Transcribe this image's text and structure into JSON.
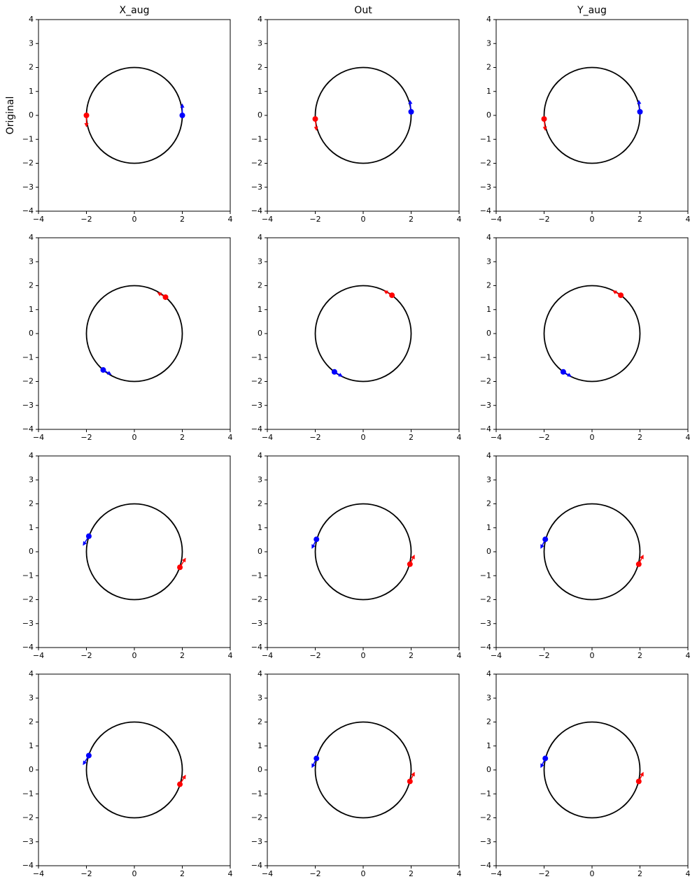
{
  "chart_data": [
    {
      "type": "scatter",
      "title": "X_aug",
      "ylabel": "Original",
      "xlim": [
        -4,
        4
      ],
      "ylim": [
        -4,
        4
      ],
      "xticks": [
        {
          "value": -4,
          "label": "−4"
        },
        {
          "value": -2,
          "label": "−2"
        },
        0,
        2,
        4
      ],
      "yticks": [
        {
          "value": -4,
          "label": "−4"
        },
        {
          "value": -3,
          "label": "−3"
        },
        {
          "value": -2,
          "label": "−2"
        },
        {
          "value": -1,
          "label": "−1"
        },
        0,
        1,
        2,
        3,
        4
      ],
      "circle_radius": 2,
      "series": [
        {
          "color": "red",
          "x": [
            -2
          ],
          "y": [
            0
          ],
          "dx": [
            0
          ],
          "dy": [
            -0.5
          ]
        },
        {
          "color": "blue",
          "x": [
            2
          ],
          "y": [
            0
          ],
          "dx": [
            0
          ],
          "dy": [
            0.5
          ]
        }
      ]
    },
    {
      "type": "scatter",
      "title": "Out",
      "xlim": [
        -4,
        4
      ],
      "ylim": [
        -4,
        4
      ],
      "xticks": [
        {
          "value": -4,
          "label": "−4"
        },
        {
          "value": -2,
          "label": "−2"
        },
        0,
        2,
        4
      ],
      "yticks": [
        {
          "value": -4,
          "label": "−4"
        },
        {
          "value": -3,
          "label": "−3"
        },
        {
          "value": -2,
          "label": "−2"
        },
        {
          "value": -1,
          "label": "−1"
        },
        0,
        1,
        2,
        3,
        4
      ],
      "circle_radius": 2,
      "series": [
        {
          "color": "red",
          "x": [
            -2
          ],
          "y": [
            -0.15
          ],
          "dx": [
            0.05
          ],
          "dy": [
            -0.5
          ]
        },
        {
          "color": "blue",
          "x": [
            2
          ],
          "y": [
            0.15
          ],
          "dx": [
            -0.05
          ],
          "dy": [
            0.5
          ]
        }
      ]
    },
    {
      "type": "scatter",
      "title": "Y_aug",
      "xlim": [
        -4,
        4
      ],
      "ylim": [
        -4,
        4
      ],
      "xticks": [
        {
          "value": -4,
          "label": "−4"
        },
        {
          "value": -2,
          "label": "−2"
        },
        0,
        2,
        4
      ],
      "yticks": [
        {
          "value": -4,
          "label": "−4"
        },
        {
          "value": -3,
          "label": "−3"
        },
        {
          "value": -2,
          "label": "−2"
        },
        {
          "value": -1,
          "label": "−1"
        },
        0,
        1,
        2,
        3,
        4
      ],
      "circle_radius": 2,
      "series": [
        {
          "color": "red",
          "x": [
            -2
          ],
          "y": [
            -0.15
          ],
          "dx": [
            0.05
          ],
          "dy": [
            -0.5
          ]
        },
        {
          "color": "blue",
          "x": [
            2
          ],
          "y": [
            0.15
          ],
          "dx": [
            -0.05
          ],
          "dy": [
            0.5
          ]
        }
      ]
    },
    {
      "type": "scatter",
      "xlim": [
        -4,
        4
      ],
      "ylim": [
        -4,
        4
      ],
      "xticks": [
        {
          "value": -4,
          "label": "−4"
        },
        {
          "value": -2,
          "label": "−2"
        },
        0,
        2,
        4
      ],
      "yticks": [
        {
          "value": -4,
          "label": "−4"
        },
        {
          "value": -3,
          "label": "−3"
        },
        {
          "value": -2,
          "label": "−2"
        },
        {
          "value": -1,
          "label": "−1"
        },
        0,
        1,
        2,
        3,
        4
      ],
      "circle_radius": 2,
      "series": [
        {
          "color": "red",
          "x": [
            1.3
          ],
          "y": [
            1.52
          ],
          "dx": [
            -0.35
          ],
          "dy": [
            0.2
          ]
        },
        {
          "color": "blue",
          "x": [
            -1.3
          ],
          "y": [
            -1.52
          ],
          "dx": [
            0.35
          ],
          "dy": [
            -0.2
          ]
        }
      ]
    },
    {
      "type": "scatter",
      "xlim": [
        -4,
        4
      ],
      "ylim": [
        -4,
        4
      ],
      "xticks": [
        {
          "value": -4,
          "label": "−4"
        },
        {
          "value": -2,
          "label": "−2"
        },
        0,
        2,
        4
      ],
      "yticks": [
        {
          "value": -4,
          "label": "−4"
        },
        {
          "value": -3,
          "label": "−3"
        },
        {
          "value": -2,
          "label": "−2"
        },
        {
          "value": -1,
          "label": "−1"
        },
        0,
        1,
        2,
        3,
        4
      ],
      "circle_radius": 2,
      "series": [
        {
          "color": "red",
          "x": [
            1.2
          ],
          "y": [
            1.6
          ],
          "dx": [
            -0.35
          ],
          "dy": [
            0.2
          ]
        },
        {
          "color": "blue",
          "x": [
            -1.2
          ],
          "y": [
            -1.6
          ],
          "dx": [
            0.35
          ],
          "dy": [
            -0.2
          ]
        }
      ]
    },
    {
      "type": "scatter",
      "xlim": [
        -4,
        4
      ],
      "ylim": [
        -4,
        4
      ],
      "xticks": [
        {
          "value": -4,
          "label": "−4"
        },
        {
          "value": -2,
          "label": "−2"
        },
        0,
        2,
        4
      ],
      "yticks": [
        {
          "value": -4,
          "label": "−4"
        },
        {
          "value": -3,
          "label": "−3"
        },
        {
          "value": -2,
          "label": "−2"
        },
        {
          "value": -1,
          "label": "−1"
        },
        0,
        1,
        2,
        3,
        4
      ],
      "circle_radius": 2,
      "series": [
        {
          "color": "red",
          "x": [
            1.2
          ],
          "y": [
            1.6
          ],
          "dx": [
            -0.35
          ],
          "dy": [
            0.2
          ]
        },
        {
          "color": "blue",
          "x": [
            -1.2
          ],
          "y": [
            -1.6
          ],
          "dx": [
            0.35
          ],
          "dy": [
            -0.2
          ]
        }
      ]
    },
    {
      "type": "scatter",
      "xlim": [
        -4,
        4
      ],
      "ylim": [
        -4,
        4
      ],
      "xticks": [
        {
          "value": -4,
          "label": "−4"
        },
        {
          "value": -2,
          "label": "−2"
        },
        0,
        2,
        4
      ],
      "yticks": [
        {
          "value": -4,
          "label": "−4"
        },
        {
          "value": -3,
          "label": "−3"
        },
        {
          "value": -2,
          "label": "−2"
        },
        {
          "value": -1,
          "label": "−1"
        },
        0,
        1,
        2,
        3,
        4
      ],
      "circle_radius": 2,
      "series": [
        {
          "color": "red",
          "x": [
            1.9
          ],
          "y": [
            -0.65
          ],
          "dx": [
            0.25
          ],
          "dy": [
            0.4
          ]
        },
        {
          "color": "blue",
          "x": [
            -1.9
          ],
          "y": [
            0.65
          ],
          "dx": [
            -0.25
          ],
          "dy": [
            -0.4
          ]
        }
      ]
    },
    {
      "type": "scatter",
      "xlim": [
        -4,
        4
      ],
      "ylim": [
        -4,
        4
      ],
      "xticks": [
        {
          "value": -4,
          "label": "−4"
        },
        {
          "value": -2,
          "label": "−2"
        },
        0,
        2,
        4
      ],
      "yticks": [
        {
          "value": -4,
          "label": "−4"
        },
        {
          "value": -3,
          "label": "−3"
        },
        {
          "value": -2,
          "label": "−2"
        },
        {
          "value": -1,
          "label": "−1"
        },
        0,
        1,
        2,
        3,
        4
      ],
      "circle_radius": 2,
      "series": [
        {
          "color": "red",
          "x": [
            1.95
          ],
          "y": [
            -0.52
          ],
          "dx": [
            0.2
          ],
          "dy": [
            0.4
          ]
        },
        {
          "color": "blue",
          "x": [
            -1.95
          ],
          "y": [
            0.52
          ],
          "dx": [
            -0.2
          ],
          "dy": [
            -0.4
          ]
        }
      ]
    },
    {
      "type": "scatter",
      "xlim": [
        -4,
        4
      ],
      "ylim": [
        -4,
        4
      ],
      "xticks": [
        {
          "value": -4,
          "label": "−4"
        },
        {
          "value": -2,
          "label": "−2"
        },
        0,
        2,
        4
      ],
      "yticks": [
        {
          "value": -4,
          "label": "−4"
        },
        {
          "value": -3,
          "label": "−3"
        },
        {
          "value": -2,
          "label": "−2"
        },
        {
          "value": -1,
          "label": "−1"
        },
        0,
        1,
        2,
        3,
        4
      ],
      "circle_radius": 2,
      "series": [
        {
          "color": "red",
          "x": [
            1.95
          ],
          "y": [
            -0.52
          ],
          "dx": [
            0.2
          ],
          "dy": [
            0.4
          ]
        },
        {
          "color": "blue",
          "x": [
            -1.95
          ],
          "y": [
            0.52
          ],
          "dx": [
            -0.2
          ],
          "dy": [
            -0.4
          ]
        }
      ]
    },
    {
      "type": "scatter",
      "xlim": [
        -4,
        4
      ],
      "ylim": [
        -4,
        4
      ],
      "xticks": [
        {
          "value": -4,
          "label": "−4"
        },
        {
          "value": -2,
          "label": "−2"
        },
        0,
        2,
        4
      ],
      "yticks": [
        {
          "value": -4,
          "label": "−4"
        },
        {
          "value": -3,
          "label": "−3"
        },
        {
          "value": -2,
          "label": "−2"
        },
        {
          "value": -1,
          "label": "−1"
        },
        0,
        1,
        2,
        3,
        4
      ],
      "circle_radius": 2,
      "series": [
        {
          "color": "red",
          "x": [
            1.9
          ],
          "y": [
            -0.6
          ],
          "dx": [
            0.25
          ],
          "dy": [
            0.4
          ]
        },
        {
          "color": "blue",
          "x": [
            -1.9
          ],
          "y": [
            0.6
          ],
          "dx": [
            -0.25
          ],
          "dy": [
            -0.4
          ]
        }
      ]
    },
    {
      "type": "scatter",
      "xlim": [
        -4,
        4
      ],
      "ylim": [
        -4,
        4
      ],
      "xticks": [
        {
          "value": -4,
          "label": "−4"
        },
        {
          "value": -2,
          "label": "−2"
        },
        0,
        2,
        4
      ],
      "yticks": [
        {
          "value": -4,
          "label": "−4"
        },
        {
          "value": -3,
          "label": "−3"
        },
        {
          "value": -2,
          "label": "−2"
        },
        {
          "value": -1,
          "label": "−1"
        },
        0,
        1,
        2,
        3,
        4
      ],
      "circle_radius": 2,
      "series": [
        {
          "color": "red",
          "x": [
            1.95
          ],
          "y": [
            -0.48
          ],
          "dx": [
            0.2
          ],
          "dy": [
            0.4
          ]
        },
        {
          "color": "blue",
          "x": [
            -1.95
          ],
          "y": [
            0.48
          ],
          "dx": [
            -0.2
          ],
          "dy": [
            -0.4
          ]
        }
      ]
    },
    {
      "type": "scatter",
      "xlim": [
        -4,
        4
      ],
      "ylim": [
        -4,
        4
      ],
      "xticks": [
        {
          "value": -4,
          "label": "−4"
        },
        {
          "value": -2,
          "label": "−2"
        },
        0,
        2,
        4
      ],
      "yticks": [
        {
          "value": -4,
          "label": "−4"
        },
        {
          "value": -3,
          "label": "−3"
        },
        {
          "value": -2,
          "label": "−2"
        },
        {
          "value": -1,
          "label": "−1"
        },
        0,
        1,
        2,
        3,
        4
      ],
      "circle_radius": 2,
      "series": [
        {
          "color": "red",
          "x": [
            1.95
          ],
          "y": [
            -0.48
          ],
          "dx": [
            0.2
          ],
          "dy": [
            0.4
          ]
        },
        {
          "color": "blue",
          "x": [
            -1.95
          ],
          "y": [
            0.48
          ],
          "dx": [
            -0.2
          ],
          "dy": [
            -0.4
          ]
        }
      ]
    }
  ]
}
